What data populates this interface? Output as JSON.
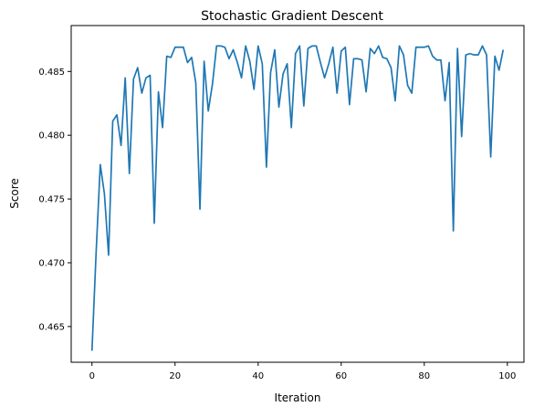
{
  "colors": {
    "series": "#1f77b4",
    "axes": "#000000",
    "background": "#ffffff"
  },
  "chart_data": {
    "type": "line",
    "title": "Stochastic Gradient Descent",
    "xlabel": "Iteration",
    "ylabel": "Score",
    "xlim": [
      -5,
      104
    ],
    "ylim": [
      0.4622,
      0.4886
    ],
    "grid": false,
    "xticks": [
      0,
      20,
      40,
      60,
      80,
      100
    ],
    "xtick_labels": [
      "0",
      "20",
      "40",
      "60",
      "80",
      "100"
    ],
    "yticks": [
      0.465,
      0.47,
      0.475,
      0.48,
      0.485
    ],
    "ytick_labels": [
      "0.465",
      "0.470",
      "0.475",
      "0.480",
      "0.485"
    ],
    "series": [
      {
        "x": [
          0,
          1,
          2,
          3,
          4,
          5,
          6,
          7,
          8,
          9,
          10,
          11,
          12,
          13,
          14,
          15,
          16,
          17,
          18,
          19,
          20,
          21,
          22,
          23,
          24,
          25,
          26,
          27,
          28,
          29,
          30,
          31,
          32,
          33,
          34,
          35,
          36,
          37,
          38,
          39,
          40,
          41,
          42,
          43,
          44,
          45,
          46,
          47,
          48,
          49,
          50,
          51,
          52,
          53,
          54,
          55,
          56,
          57,
          58,
          59,
          60,
          61,
          62,
          63,
          64,
          65,
          66,
          67,
          68,
          69,
          70,
          71,
          72,
          73,
          74,
          75,
          76,
          77,
          78,
          79,
          80,
          81,
          82,
          83,
          84,
          85,
          86,
          87,
          88,
          89,
          90,
          91,
          92,
          93,
          94,
          95,
          96,
          97,
          98,
          99
        ],
        "values": [
          0.4631,
          0.4708,
          0.4777,
          0.4754,
          0.4706,
          0.4811,
          0.4816,
          0.4792,
          0.4845,
          0.477,
          0.4844,
          0.4853,
          0.4833,
          0.4845,
          0.4847,
          0.4731,
          0.4834,
          0.4806,
          0.4862,
          0.4861,
          0.4869,
          0.4869,
          0.4869,
          0.4857,
          0.4861,
          0.4841,
          0.4742,
          0.4858,
          0.4819,
          0.484,
          0.487,
          0.487,
          0.4869,
          0.486,
          0.4867,
          0.4857,
          0.4845,
          0.487,
          0.4858,
          0.4836,
          0.487,
          0.4856,
          0.4775,
          0.4849,
          0.4867,
          0.4822,
          0.4848,
          0.4856,
          0.4806,
          0.4864,
          0.487,
          0.4823,
          0.4868,
          0.487,
          0.487,
          0.4857,
          0.4845,
          0.4856,
          0.4869,
          0.4833,
          0.4866,
          0.4869,
          0.4824,
          0.486,
          0.486,
          0.4859,
          0.4834,
          0.4868,
          0.4864,
          0.487,
          0.4861,
          0.486,
          0.4853,
          0.4827,
          0.487,
          0.4863,
          0.4839,
          0.4833,
          0.4869,
          0.4869,
          0.4869,
          0.487,
          0.4862,
          0.4859,
          0.4859,
          0.4827,
          0.4857,
          0.4725,
          0.4868,
          0.4799,
          0.4863,
          0.4864,
          0.4863,
          0.4863,
          0.487,
          0.4863,
          0.4783,
          0.4862,
          0.4851,
          0.4867
        ]
      }
    ]
  }
}
